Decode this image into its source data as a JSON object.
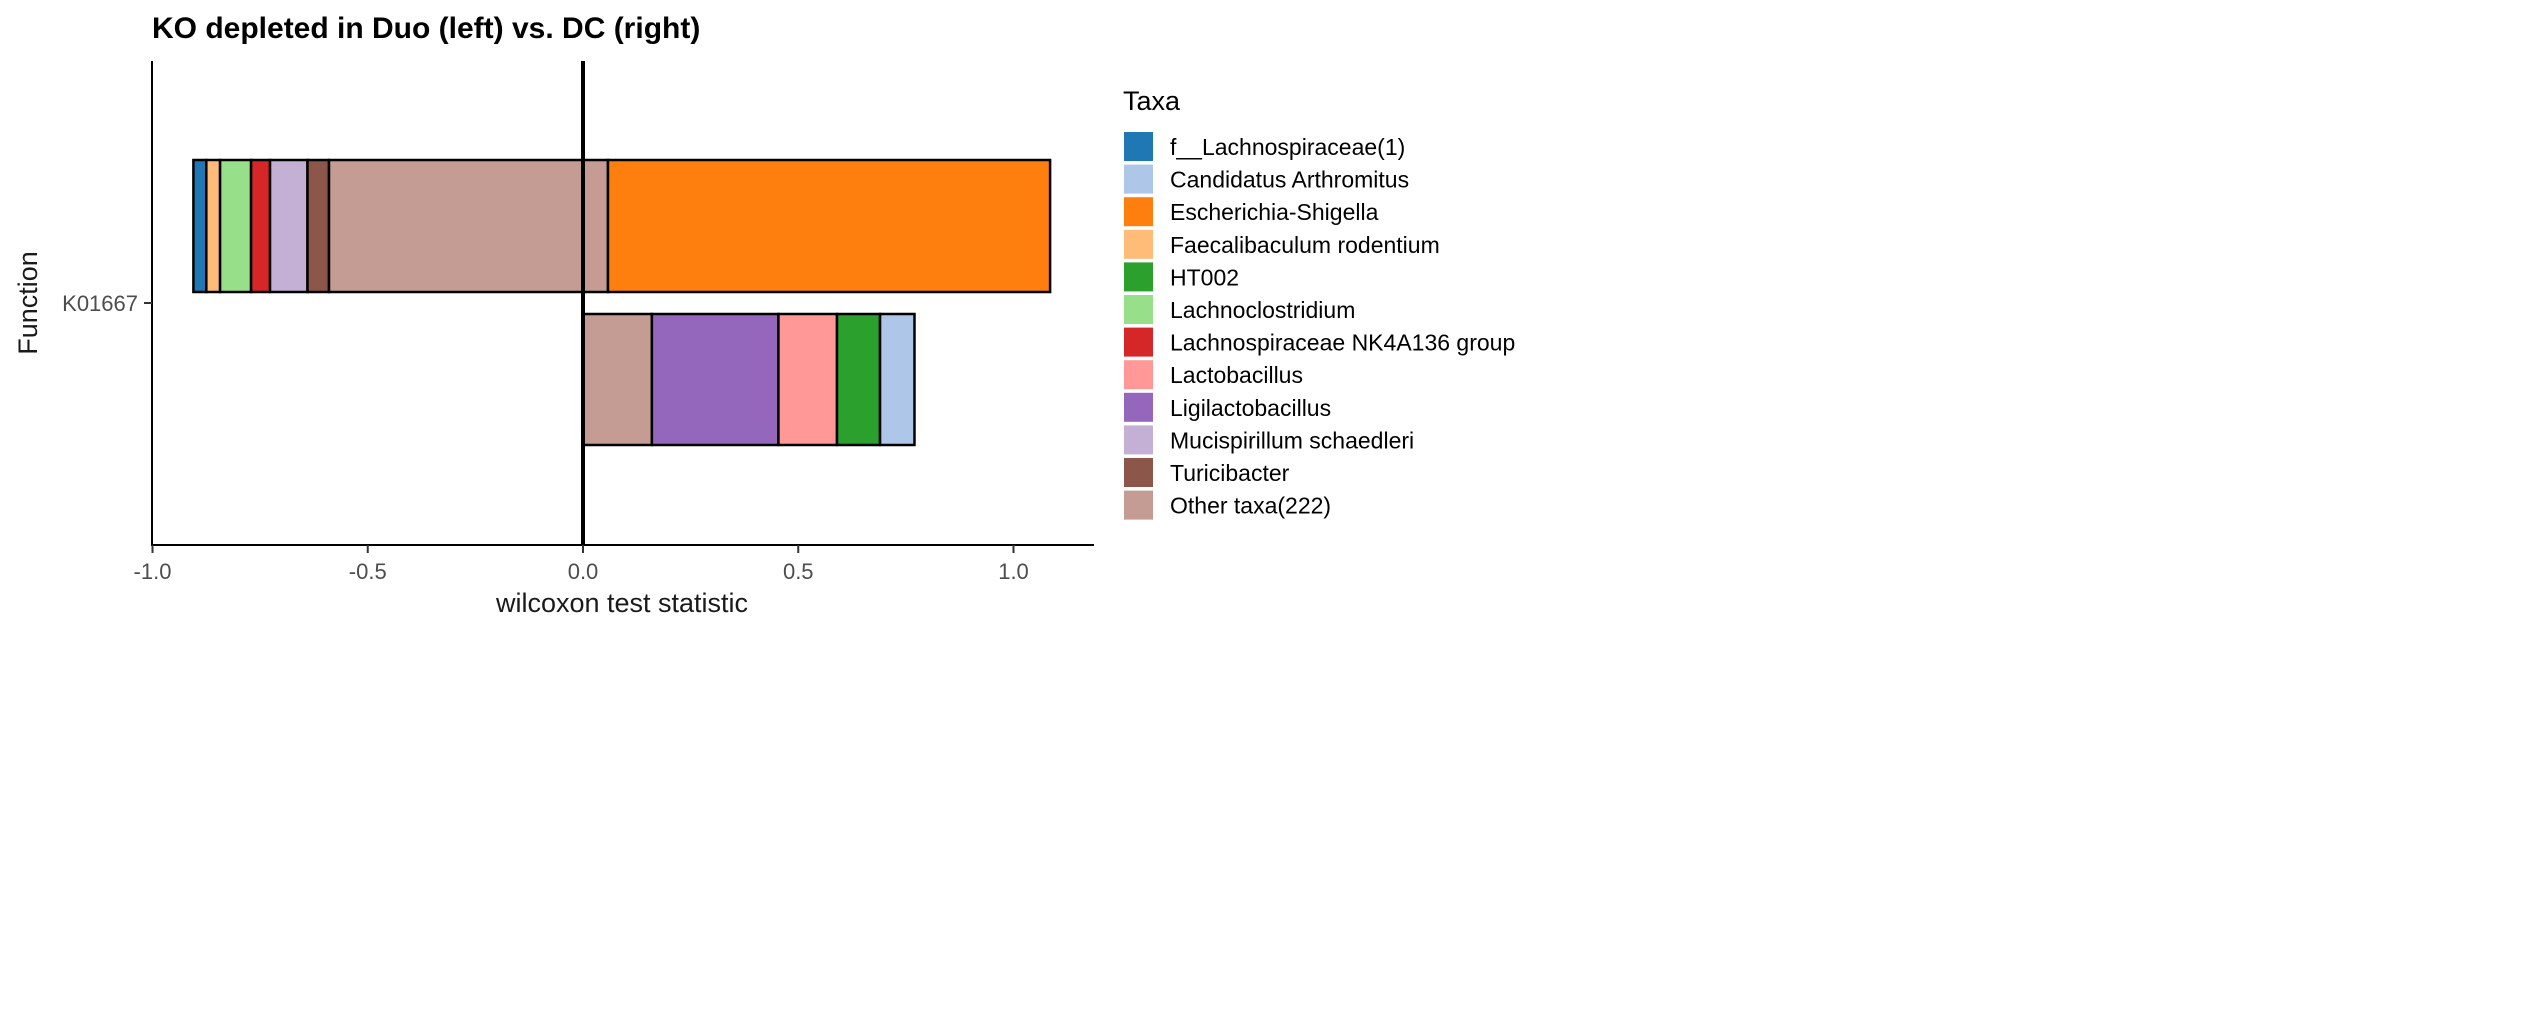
{
  "chart_data": {
    "type": "bar",
    "orientation": "horizontal",
    "stacked": true,
    "title": "KO depleted in Duo (left) vs. DC (right)",
    "xlabel": "wilcoxon test statistic",
    "ylabel": "Function",
    "xlim": [
      -1.0,
      1.18
    ],
    "x_ticks": [
      {
        "value": -1.0,
        "label": "-1.0"
      },
      {
        "value": -0.5,
        "label": "-0.5"
      },
      {
        "value": 0.0,
        "label": "0.0"
      },
      {
        "value": 0.5,
        "label": "0.5"
      },
      {
        "value": 1.0,
        "label": "1.0"
      }
    ],
    "categories": [
      "K01667"
    ],
    "zero_line": true,
    "grid": false,
    "legend": {
      "title": "Taxa",
      "position": "right",
      "entries": [
        {
          "name": "f__Lachnospiraceae(1)",
          "color": "#1F77B4"
        },
        {
          "name": "Candidatus Arthromitus",
          "color": "#AEC7E8"
        },
        {
          "name": "Escherichia-Shigella",
          "color": "#FF7F0E"
        },
        {
          "name": "Faecalibaculum rodentium",
          "color": "#FFBB78"
        },
        {
          "name": "HT002",
          "color": "#2CA02C"
        },
        {
          "name": "Lachnoclostridium",
          "color": "#98DF8A"
        },
        {
          "name": "Lachnospiraceae NK4A136 group",
          "color": "#D62728"
        },
        {
          "name": "Lactobacillus",
          "color": "#FF9896"
        },
        {
          "name": "Ligilactobacillus",
          "color": "#9467BD"
        },
        {
          "name": "Mucispirillum schaedleri",
          "color": "#C5B0D5"
        },
        {
          "name": "Turicibacter",
          "color": "#8C564B"
        },
        {
          "name": "Other taxa(222)",
          "color": "#C49C94"
        }
      ]
    },
    "bars": [
      {
        "category": "K01667",
        "position": "upper",
        "segments": [
          {
            "taxon": "f__Lachnospiraceae(1)",
            "start": -0.905,
            "end": -0.875
          },
          {
            "taxon": "Faecalibaculum rodentium",
            "start": -0.875,
            "end": -0.843
          },
          {
            "taxon": "Lachnoclostridium",
            "start": -0.843,
            "end": -0.771
          },
          {
            "taxon": "Lachnospiraceae NK4A136 group",
            "start": -0.771,
            "end": -0.727
          },
          {
            "taxon": "Mucispirillum schaedleri",
            "start": -0.727,
            "end": -0.64
          },
          {
            "taxon": "Turicibacter",
            "start": -0.64,
            "end": -0.59
          },
          {
            "taxon": "Other taxa(222)",
            "start": -0.59,
            "end": 0.058
          },
          {
            "taxon": "Escherichia-Shigella",
            "start": 0.058,
            "end": 1.085
          }
        ]
      },
      {
        "category": "K01667",
        "position": "lower",
        "segments": [
          {
            "taxon": "Other taxa(222)",
            "start": 0.0,
            "end": 0.16
          },
          {
            "taxon": "Ligilactobacillus",
            "start": 0.16,
            "end": 0.454
          },
          {
            "taxon": "Lactobacillus",
            "start": 0.454,
            "end": 0.59
          },
          {
            "taxon": "HT002",
            "start": 0.59,
            "end": 0.69
          },
          {
            "taxon": "Candidatus Arthromitus",
            "start": 0.69,
            "end": 0.77
          }
        ]
      }
    ]
  }
}
